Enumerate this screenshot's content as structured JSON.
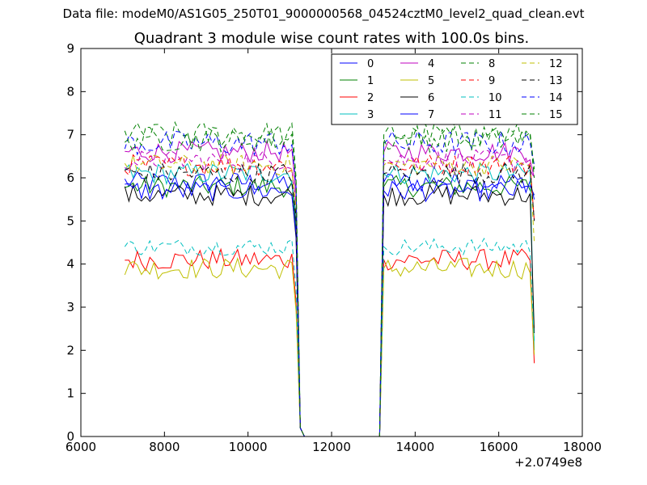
{
  "figure": {
    "suptitle": "Data file: modeM0/AS1G05_250T01_9000000568_04524cztM0_level2_quad_clean.evt"
  },
  "chart_data": {
    "type": "line",
    "title": "Quadrant 3 module wise count rates with 100.0s bins.",
    "xlabel": "",
    "ylabel": "",
    "x_offset_label": "+2.0749e8",
    "xlim": [
      6000,
      18000
    ],
    "ylim": [
      0,
      9
    ],
    "x_ticks": [
      6000,
      8000,
      10000,
      12000,
      14000,
      16000,
      18000
    ],
    "y_ticks": [
      0,
      1,
      2,
      3,
      4,
      5,
      6,
      7,
      8,
      9
    ],
    "x_tick_labels": [
      "6000",
      "8000",
      "10000",
      "12000",
      "14000",
      "16000",
      "18000"
    ],
    "y_tick_labels": [
      "0",
      "1",
      "2",
      "3",
      "4",
      "5",
      "6",
      "7",
      "8",
      "9"
    ],
    "grid": false,
    "legend_position": "top-right",
    "segments": [
      {
        "start": 7050,
        "end": 11050
      },
      {
        "start": 13250,
        "end": 16750
      }
    ],
    "dip": [
      [
        11150,
        5.0
      ],
      [
        11250,
        0.2
      ],
      [
        11350,
        0.0
      ],
      [
        13150,
        0.0
      ],
      [
        13250,
        6.0
      ]
    ],
    "series": [
      {
        "name": "0",
        "color": "#0000ff",
        "dash": "solid",
        "level": 5.9,
        "jitter": 0.25,
        "end_value": 5.5
      },
      {
        "name": "1",
        "color": "#008000",
        "dash": "solid",
        "level": 5.8,
        "jitter": 0.25,
        "end_value": 5.6
      },
      {
        "name": "2",
        "color": "#ff0000",
        "dash": "solid",
        "level": 4.1,
        "jitter": 0.25,
        "end_value": 1.7
      },
      {
        "name": "3",
        "color": "#00bfbf",
        "dash": "solid",
        "level": 6.1,
        "jitter": 0.25,
        "end_value": 2.0
      },
      {
        "name": "4",
        "color": "#bf00bf",
        "dash": "solid",
        "level": 6.6,
        "jitter": 0.25,
        "end_value": 6.0
      },
      {
        "name": "5",
        "color": "#bfbf00",
        "dash": "solid",
        "level": 3.9,
        "jitter": 0.25,
        "end_value": 1.9
      },
      {
        "name": "6",
        "color": "#000000",
        "dash": "solid",
        "level": 5.6,
        "jitter": 0.25,
        "end_value": 2.4
      },
      {
        "name": "7",
        "color": "#0000ff",
        "dash": "solid",
        "level": 5.7,
        "jitter": 0.25,
        "end_value": 5.6
      },
      {
        "name": "8",
        "color": "#008000",
        "dash": "dashed",
        "level": 7.0,
        "jitter": 0.3,
        "end_value": 6.0
      },
      {
        "name": "9",
        "color": "#ff0000",
        "dash": "dashed",
        "level": 6.3,
        "jitter": 0.25,
        "end_value": 5.0
      },
      {
        "name": "10",
        "color": "#00bfbf",
        "dash": "dashed",
        "level": 4.4,
        "jitter": 0.2,
        "end_value": 2.2
      },
      {
        "name": "11",
        "color": "#bf00bf",
        "dash": "dashed",
        "level": 6.4,
        "jitter": 0.25,
        "end_value": 6.0
      },
      {
        "name": "12",
        "color": "#bfbf00",
        "dash": "dashed",
        "level": 6.3,
        "jitter": 0.25,
        "end_value": 4.5
      },
      {
        "name": "13",
        "color": "#000000",
        "dash": "dashed",
        "level": 6.1,
        "jitter": 0.25,
        "end_value": 5.0
      },
      {
        "name": "14",
        "color": "#0000ff",
        "dash": "dashed",
        "level": 6.8,
        "jitter": 0.3,
        "end_value": 6.3
      },
      {
        "name": "15",
        "color": "#008000",
        "dash": "dashed",
        "level": 6.9,
        "jitter": 0.3,
        "end_value": 6.2
      }
    ]
  }
}
